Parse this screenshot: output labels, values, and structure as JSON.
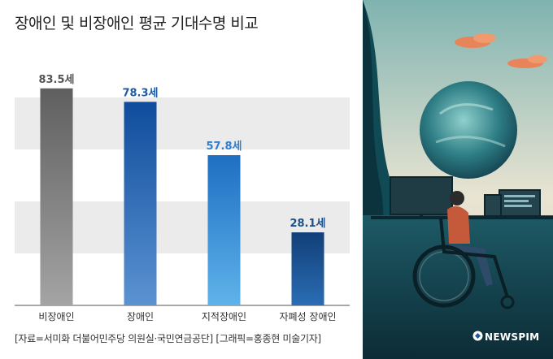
{
  "title": "장애인 및 비장애인 평균 기대수명 비교",
  "source": "[자료=서미화 더불어민주당 의원실·국민연금공단] [그래픽=홍종현 미술기자]",
  "brand": "NEWSPIM",
  "colors": {
    "grey_bar": "#6e6e6e",
    "blue_bar": "#1c5aa6",
    "light_blue_bar": "#2f86d2",
    "navy_bar": "#1c4f86",
    "band": "#ebebeb"
  },
  "chart_data": {
    "type": "bar",
    "title": "장애인 및 비장애인 평균 기대수명 비교",
    "categories": [
      "비장애인",
      "장애인",
      "지적장애인",
      "자폐성 장애인"
    ],
    "values": [
      83.5,
      78.3,
      57.8,
      28.1
    ],
    "value_labels": [
      "83.5세",
      "78.3세",
      "57.8세",
      "28.1세"
    ],
    "ylim": [
      0,
      100
    ],
    "grid": "horizontal bands",
    "xlabel": "",
    "ylabel": ""
  }
}
